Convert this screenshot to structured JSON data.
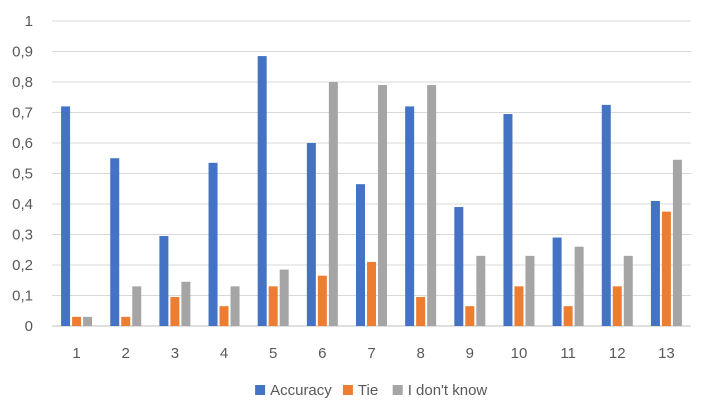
{
  "chart_data": {
    "type": "bar",
    "categories": [
      "1",
      "2",
      "3",
      "4",
      "5",
      "6",
      "7",
      "8",
      "9",
      "10",
      "11",
      "12",
      "13"
    ],
    "series": [
      {
        "name": "Accuracy",
        "color": "#4472C4",
        "values": [
          0.72,
          0.55,
          0.295,
          0.535,
          0.885,
          0.6,
          0.465,
          0.72,
          0.39,
          0.695,
          0.29,
          0.725,
          0.41
        ]
      },
      {
        "name": "Tie",
        "color": "#ED7D31",
        "values": [
          0.03,
          0.03,
          0.095,
          0.065,
          0.13,
          0.165,
          0.21,
          0.095,
          0.065,
          0.13,
          0.065,
          0.13,
          0.375
        ]
      },
      {
        "name": "I don't know",
        "color": "#A5A5A5",
        "values": [
          0.03,
          0.13,
          0.145,
          0.13,
          0.185,
          0.8,
          0.79,
          0.79,
          0.23,
          0.23,
          0.26,
          0.23,
          0.545
        ]
      }
    ],
    "y_ticks": [
      "0",
      "0,1",
      "0,2",
      "0,3",
      "0,4",
      "0,5",
      "0,6",
      "0,7",
      "0,8",
      "0,9",
      "1"
    ],
    "ylim": [
      0,
      1
    ],
    "grid": true,
    "legend_position": "bottom",
    "title": "",
    "xlabel": "",
    "ylabel": ""
  }
}
